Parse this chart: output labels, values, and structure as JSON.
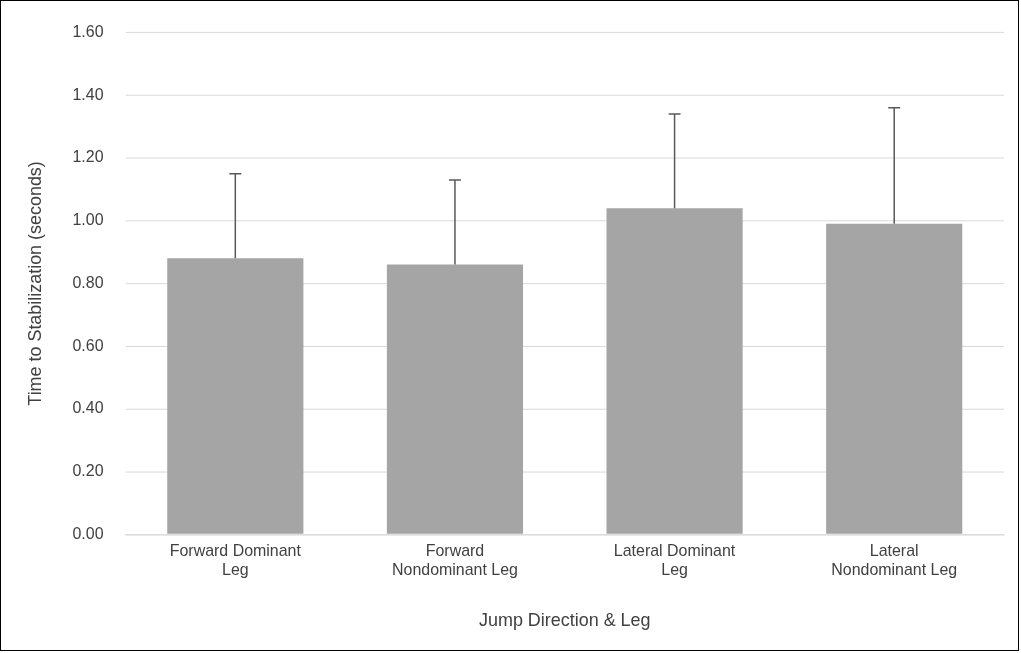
{
  "chart_data": {
    "type": "bar",
    "xlabel": "Jump Direction & Leg",
    "ylabel": "Time to Stabilization (seconds)",
    "categories": [
      "Forward Dominant Leg",
      "Forward Nondominant Leg",
      "Lateral Dominant Leg",
      "Lateral Nondominant Leg"
    ],
    "values": [
      0.88,
      0.86,
      1.04,
      0.99
    ],
    "color": "#a5a5a5",
    "errors": [
      [
        0.88,
        1.15
      ],
      [
        0.86,
        1.13
      ],
      [
        1.04,
        1.34
      ],
      [
        0.99,
        1.36
      ]
    ],
    "ylim": [
      0,
      1.6
    ],
    "yticks": [
      {
        "value": 0,
        "label": "0.00"
      },
      {
        "value": 0.2,
        "label": "0.20"
      },
      {
        "value": 0.4,
        "label": "0.40"
      },
      {
        "value": 0.6,
        "label": "0.60"
      },
      {
        "value": 0.8,
        "label": "0.80"
      },
      {
        "value": 1,
        "label": "1.00"
      },
      {
        "value": 1.2,
        "label": "1.20"
      },
      {
        "value": 1.4,
        "label": "1.40"
      },
      {
        "value": 1.6,
        "label": "1.60"
      }
    ],
    "grid": "y",
    "legend": false
  }
}
